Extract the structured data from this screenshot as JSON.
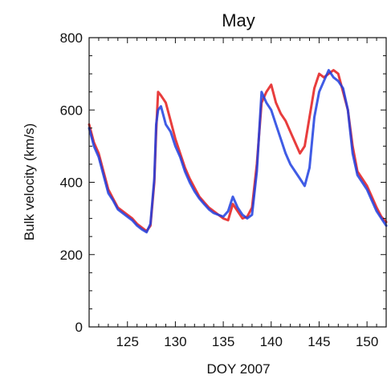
{
  "chart_data": {
    "type": "line",
    "title": "May",
    "xlabel": "DOY 2007",
    "ylabel": "Bulk velocity (km/s)",
    "xlim": [
      121,
      152
    ],
    "ylim": [
      0,
      800
    ],
    "x_ticks": [
      125,
      130,
      135,
      140,
      145,
      150
    ],
    "y_ticks": [
      0,
      200,
      400,
      600,
      800
    ],
    "y_minor_step": 50,
    "x_minor_step": 1,
    "grid": false,
    "series": [
      {
        "color": "#e41b1b",
        "x": [
          121,
          121.5,
          122,
          122.5,
          123,
          123.5,
          124,
          124.5,
          125,
          125.5,
          126,
          126.5,
          127,
          127.4,
          127.8,
          128.0,
          128.2,
          128.5,
          129,
          129.5,
          130,
          130.5,
          131,
          131.5,
          132,
          132.5,
          133,
          133.5,
          134,
          134.5,
          135,
          135.5,
          136,
          136.5,
          137,
          137.5,
          138,
          138.5,
          139,
          139.5,
          140,
          140.5,
          141,
          141.5,
          142,
          142.5,
          143,
          143.5,
          144,
          144.5,
          145,
          145.5,
          146,
          146.5,
          147,
          147.5,
          148,
          148.5,
          149,
          149.5,
          150,
          150.5,
          151,
          151.5,
          152
        ],
        "y": [
          560,
          510,
          480,
          430,
          380,
          355,
          330,
          320,
          310,
          300,
          285,
          275,
          265,
          280,
          400,
          540,
          650,
          640,
          620,
          570,
          520,
          480,
          440,
          410,
          385,
          360,
          345,
          330,
          320,
          310,
          300,
          295,
          340,
          320,
          300,
          305,
          330,
          450,
          620,
          650,
          670,
          620,
          590,
          570,
          540,
          510,
          480,
          500,
          580,
          660,
          700,
          690,
          700,
          710,
          700,
          650,
          600,
          500,
          430,
          410,
          390,
          360,
          330,
          305,
          290
        ]
      },
      {
        "color": "#1f3fe0",
        "x": [
          121,
          121.5,
          122,
          122.5,
          123,
          123.5,
          124,
          124.5,
          125,
          125.5,
          126,
          126.5,
          127,
          127.4,
          127.8,
          128.0,
          128.2,
          128.5,
          129,
          129.5,
          130,
          130.5,
          131,
          131.5,
          132,
          132.5,
          133,
          133.5,
          134,
          134.5,
          135,
          135.5,
          136,
          136.5,
          137,
          137.5,
          138,
          138.5,
          139,
          139.5,
          140,
          140.5,
          141,
          141.5,
          142,
          142.5,
          143,
          143.5,
          144,
          144.5,
          145,
          145.5,
          146,
          146.5,
          147,
          147.5,
          148,
          148.5,
          149,
          149.5,
          150,
          150.5,
          151,
          151.5,
          152
        ],
        "y": [
          550,
          500,
          470,
          420,
          370,
          350,
          325,
          315,
          305,
          295,
          280,
          270,
          262,
          285,
          410,
          560,
          600,
          610,
          560,
          540,
          500,
          470,
          430,
          400,
          375,
          355,
          340,
          325,
          315,
          310,
          305,
          320,
          360,
          330,
          310,
          300,
          310,
          430,
          650,
          620,
          600,
          560,
          520,
          480,
          450,
          430,
          410,
          390,
          440,
          580,
          650,
          680,
          710,
          690,
          680,
          660,
          600,
          480,
          420,
          400,
          380,
          350,
          320,
          300,
          280
        ]
      }
    ]
  }
}
